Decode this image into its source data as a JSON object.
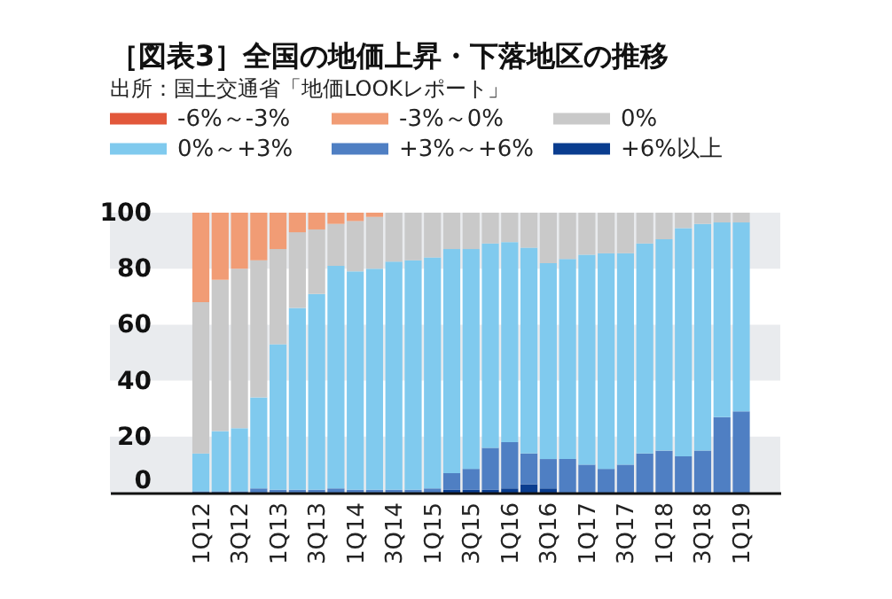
{
  "chart_data": {
    "type": "bar",
    "title": "［図表3］全国の地価上昇・下落地区の推移",
    "subtitle": "出所：国土交通省「地価LOOKレポート」",
    "categories": [
      "1Q12",
      null,
      "3Q12",
      null,
      "1Q13",
      null,
      "3Q13",
      null,
      "1Q14",
      null,
      "3Q14",
      null,
      "1Q15",
      null,
      "3Q15",
      null,
      "1Q16",
      null,
      "3Q16",
      null,
      "1Q17",
      null,
      "3Q17",
      null,
      "1Q18",
      null,
      "3Q18",
      null,
      "1Q19"
    ],
    "stacked": true,
    "ylim": [
      0,
      100
    ],
    "yticks": [
      0,
      20,
      40,
      60,
      80,
      100
    ],
    "legend": "top",
    "bands": [
      {
        "axis": "y",
        "from": 0,
        "to": 20,
        "color": "#e9ebee"
      },
      {
        "axis": "y",
        "from": 40,
        "to": 60,
        "color": "#e9ebee"
      },
      {
        "axis": "y",
        "from": 80,
        "to": 100,
        "color": "#e9ebee"
      }
    ],
    "series": [
      {
        "name": "+6%以上",
        "color": "#0a3d8f",
        "values": [
          0,
          0,
          0,
          0,
          0,
          0,
          0,
          0,
          0,
          0,
          0,
          0,
          0,
          1,
          1,
          1,
          1.5,
          3,
          1.5,
          0,
          0,
          0,
          0,
          0,
          0,
          0,
          0,
          0,
          0
        ]
      },
      {
        "name": "+3%～+6%",
        "color": "#4f7fc3",
        "values": [
          0.5,
          0.5,
          0.5,
          1.5,
          1,
          1,
          1,
          1.5,
          1,
          1,
          1,
          1,
          1.5,
          6,
          7.5,
          15,
          16.5,
          11,
          10.5,
          12,
          10,
          8.5,
          10,
          14,
          15,
          13,
          15,
          27,
          29
        ]
      },
      {
        "name": "0%～+3%",
        "color": "#80caee",
        "values": [
          13.5,
          21.5,
          22.5,
          32.5,
          52,
          65,
          70,
          79.5,
          78,
          79,
          81.5,
          82,
          82.5,
          80,
          78.5,
          73,
          71.5,
          73.5,
          70,
          71.5,
          75,
          77,
          75.5,
          75,
          75.5,
          81.5,
          81,
          69.5,
          67.5
        ]
      },
      {
        "name": "0%",
        "color": "#c9c9c9",
        "values": [
          54,
          54,
          57,
          49,
          34,
          27,
          23,
          15,
          18,
          18.5,
          17.5,
          17,
          16,
          13,
          13,
          11,
          10.5,
          12.5,
          18,
          16.5,
          15,
          14.5,
          14.5,
          11,
          9.5,
          5.5,
          4,
          3.5,
          3.5
        ]
      },
      {
        "name": "-3%～0%",
        "color": "#f19c75",
        "values": [
          32,
          24,
          20,
          17,
          13,
          7,
          6,
          4,
          3,
          1.5,
          0,
          0,
          0,
          0,
          0,
          0,
          0,
          0,
          0,
          0,
          0,
          0,
          0,
          0,
          0,
          0,
          0,
          0,
          0
        ]
      },
      {
        "name": "-6%～-3%",
        "color": "#e2583b",
        "values": [
          0,
          0,
          0,
          0,
          0,
          0,
          0,
          0,
          0,
          0,
          0,
          0,
          0,
          0,
          0,
          0,
          0,
          0,
          0,
          0,
          0,
          0,
          0,
          0,
          0,
          0,
          0,
          0,
          0
        ]
      }
    ]
  }
}
